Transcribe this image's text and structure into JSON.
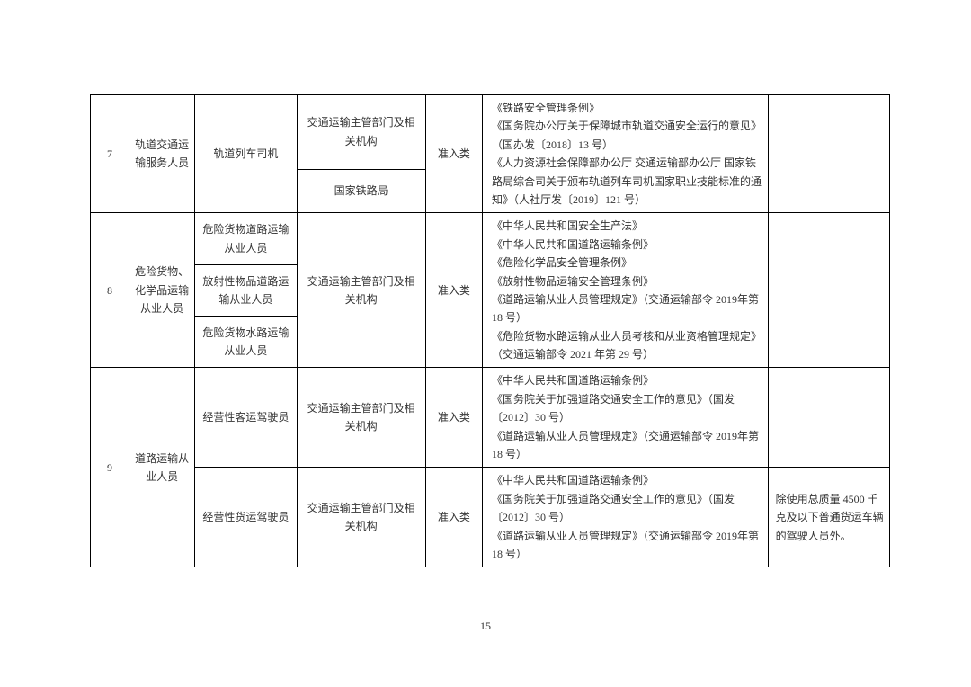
{
  "page_number": "15",
  "table": {
    "border_color": "#000000",
    "font_size": 12,
    "text_color": "#333333",
    "background_color": "#ffffff",
    "columns": {
      "num_width": 30,
      "cat_width": 60,
      "sub_width": 100,
      "dep_width": 130,
      "type_width": 50,
      "reg_width": 300,
      "note_width": 120
    },
    "rows": {
      "r7": {
        "num": "7",
        "category": "轨道交通运输服务人员",
        "sub": "轨道列车司机",
        "dept1": "交通运输主管部门及相关机构",
        "dept2": "国家铁路局",
        "type": "准入类",
        "reg": "《铁路安全管理条例》\n《国务院办公厅关于保障城市轨道交通安全运行的意见》（国办发〔2018〕13 号）\n《人力资源社会保障部办公厅 交通运输部办公厅 国家铁路局综合司关于颁布轨道列车司机国家职业技能标准的通知》（人社厅发〔2019〕121 号）",
        "note": ""
      },
      "r8": {
        "num": "8",
        "category": "危险货物、化学品运输从业人员",
        "sub1": "危险货物道路运输从业人员",
        "sub2": "放射性物品道路运输从业人员",
        "sub3": "危险货物水路运输从业人员",
        "dept": "交通运输主管部门及相关机构",
        "type": "准入类",
        "reg": "《中华人民共和国安全生产法》\n《中华人民共和国道路运输条例》\n《危险化学品安全管理条例》\n《放射性物品运输安全管理条例》\n《道路运输从业人员管理规定》（交通运输部令 2019年第 18 号）\n《危险货物水路运输从业人员考核和从业资格管理规定》（交通运输部令 2021 年第 29 号）",
        "note": ""
      },
      "r9": {
        "num": "9",
        "category": "道路运输从业人员",
        "sub1": "经营性客运驾驶员",
        "sub2": "经营性货运驾驶员",
        "dept1": "交通运输主管部门及相关机构",
        "dept2": "交通运输主管部门及相关机构",
        "type1": "准入类",
        "type2": "准入类",
        "reg1": "《中华人民共和国道路运输条例》\n《国务院关于加强道路交通安全工作的意见》（国发〔2012〕30 号）\n《道路运输从业人员管理规定》（交通运输部令 2019年第 18 号）",
        "reg2": "《中华人民共和国道路运输条例》\n《国务院关于加强道路交通安全工作的意见》（国发〔2012〕30 号）\n《道路运输从业人员管理规定》（交通运输部令 2019年第 18 号）",
        "note1": "",
        "note2": "除使用总质量 4500 千克及以下普通货运车辆的驾驶人员外。"
      }
    }
  }
}
